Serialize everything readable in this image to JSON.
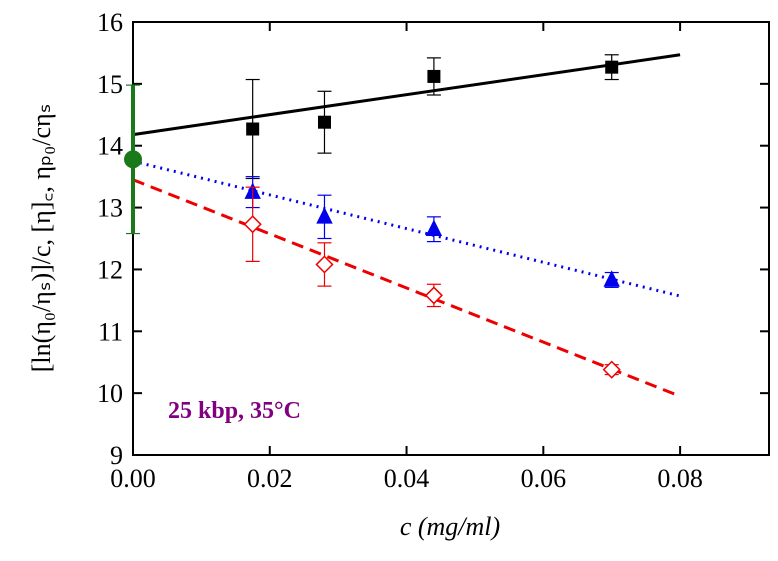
{
  "chart_data": {
    "type": "scatter",
    "x_label": "c (mg/ml)",
    "y_label": "[ln(η₀/ηₛ)]/c,  [η]꜀,  ηₚ₀/cηₛ",
    "annotation": "25 kbp, 35°C",
    "xlim": [
      0,
      0.093
    ],
    "ylim": [
      9,
      16
    ],
    "xticks": [
      {
        "value": 0,
        "label": "0.00"
      },
      {
        "value": 0.02,
        "label": "0.02"
      },
      {
        "value": 0.04,
        "label": "0.04"
      },
      {
        "value": 0.06,
        "label": "0.06"
      },
      {
        "value": 0.08,
        "label": "0.08"
      }
    ],
    "yticks": [
      9,
      10,
      11,
      12,
      13,
      14,
      15,
      16
    ],
    "series": [
      {
        "color": "#000000",
        "marker": "square",
        "x": [
          0.0175,
          0.028,
          0.044,
          0.07
        ],
        "values": [
          14.27,
          14.38,
          15.12,
          15.27
        ],
        "errors": [
          0.8,
          0.5,
          0.3,
          0.2
        ]
      },
      {
        "color": "#0000ee",
        "marker": "triangle",
        "x": [
          0.0175,
          0.028,
          0.044,
          0.07
        ],
        "values": [
          13.25,
          12.85,
          12.65,
          11.83
        ],
        "errors": [
          0.25,
          0.35,
          0.2,
          0.12
        ]
      },
      {
        "color": "#ee0000",
        "marker": "diamond",
        "x": [
          0.0175,
          0.028,
          0.044,
          0.07
        ],
        "values": [
          12.73,
          12.08,
          11.58,
          10.38
        ],
        "errors": [
          0.6,
          0.35,
          0.18,
          0.08
        ]
      },
      {
        "color": "#1a7a1a",
        "marker": "circle",
        "x": [
          0
        ],
        "values": [
          13.78
        ],
        "errors": [
          1.2
        ]
      }
    ],
    "fits": [
      {
        "color": "#000000",
        "dash": "none",
        "x": [
          0,
          0.08
        ],
        "values": [
          14.18,
          15.47
        ]
      },
      {
        "color": "#0000ee",
        "dash": "2 5",
        "x": [
          0,
          0.08
        ],
        "values": [
          13.75,
          11.57
        ]
      },
      {
        "color": "#ee0000",
        "dash": "12 7",
        "x": [
          0,
          0.08
        ],
        "values": [
          13.45,
          9.95
        ]
      }
    ]
  }
}
